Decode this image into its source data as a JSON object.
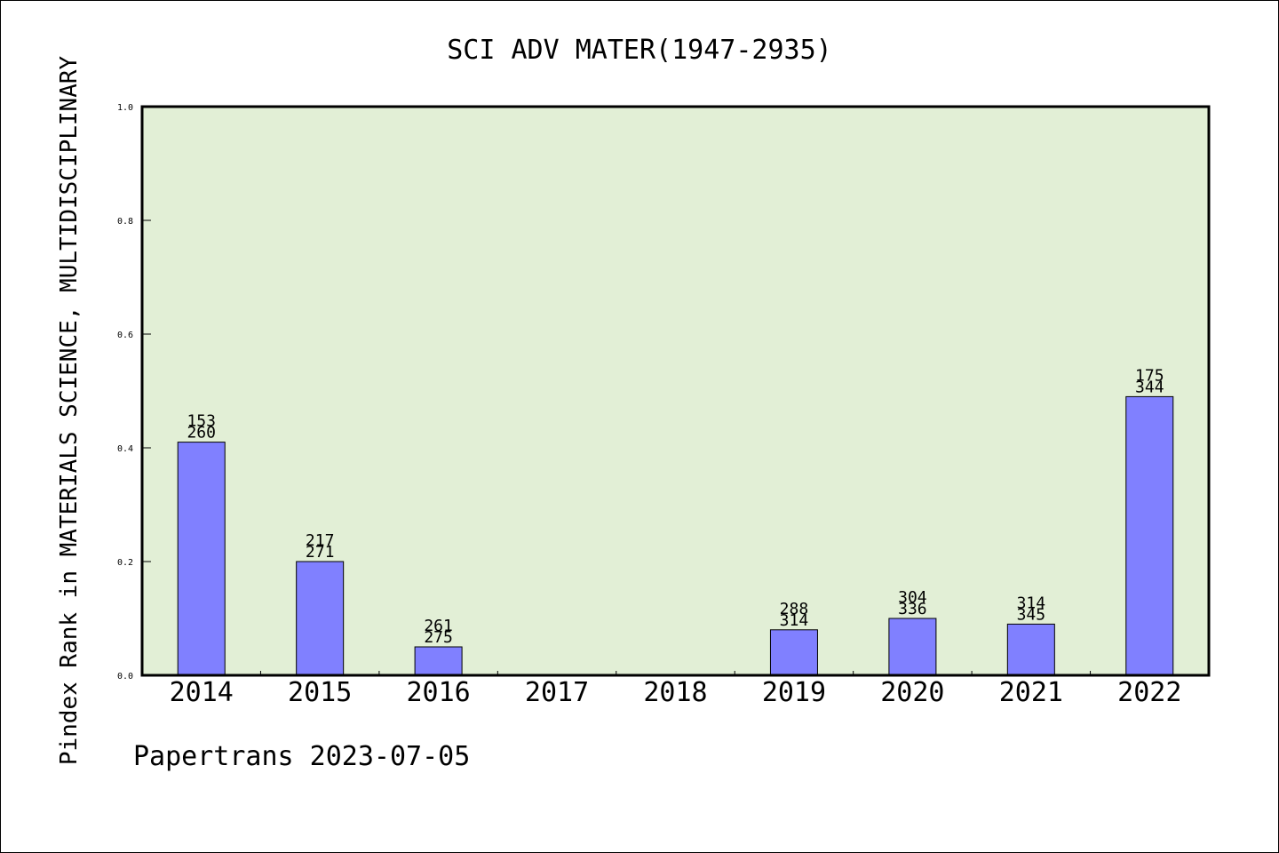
{
  "chart_data": {
    "type": "bar",
    "title": "SCI ADV MATER(1947-2935)",
    "ylabel": "Pindex Rank in MATERIALS SCIENCE, MULTIDISCIPLINARY",
    "xlabel": "",
    "ylim": [
      0,
      1.0
    ],
    "yticks": [
      "0.0",
      "0.2",
      "0.4",
      "0.6",
      "0.8",
      "1.0"
    ],
    "categories": [
      "2014",
      "2015",
      "2016",
      "2017",
      "2018",
      "2019",
      "2020",
      "2021",
      "2022"
    ],
    "values": [
      0.41,
      0.2,
      0.05,
      null,
      null,
      0.08,
      0.1,
      0.09,
      0.49
    ],
    "labels_top": [
      "153",
      "217",
      "261",
      "",
      "",
      "288",
      "304",
      "314",
      "175"
    ],
    "labels_bottom": [
      "260",
      "271",
      "275",
      "",
      "",
      "314",
      "336",
      "345",
      "344"
    ],
    "grid": false,
    "colors": {
      "plot_background": "#e2efd6",
      "bar_fill": "#8080ff",
      "bar_stroke": "#000000"
    }
  },
  "footer": "Papertrans 2023-07-05"
}
